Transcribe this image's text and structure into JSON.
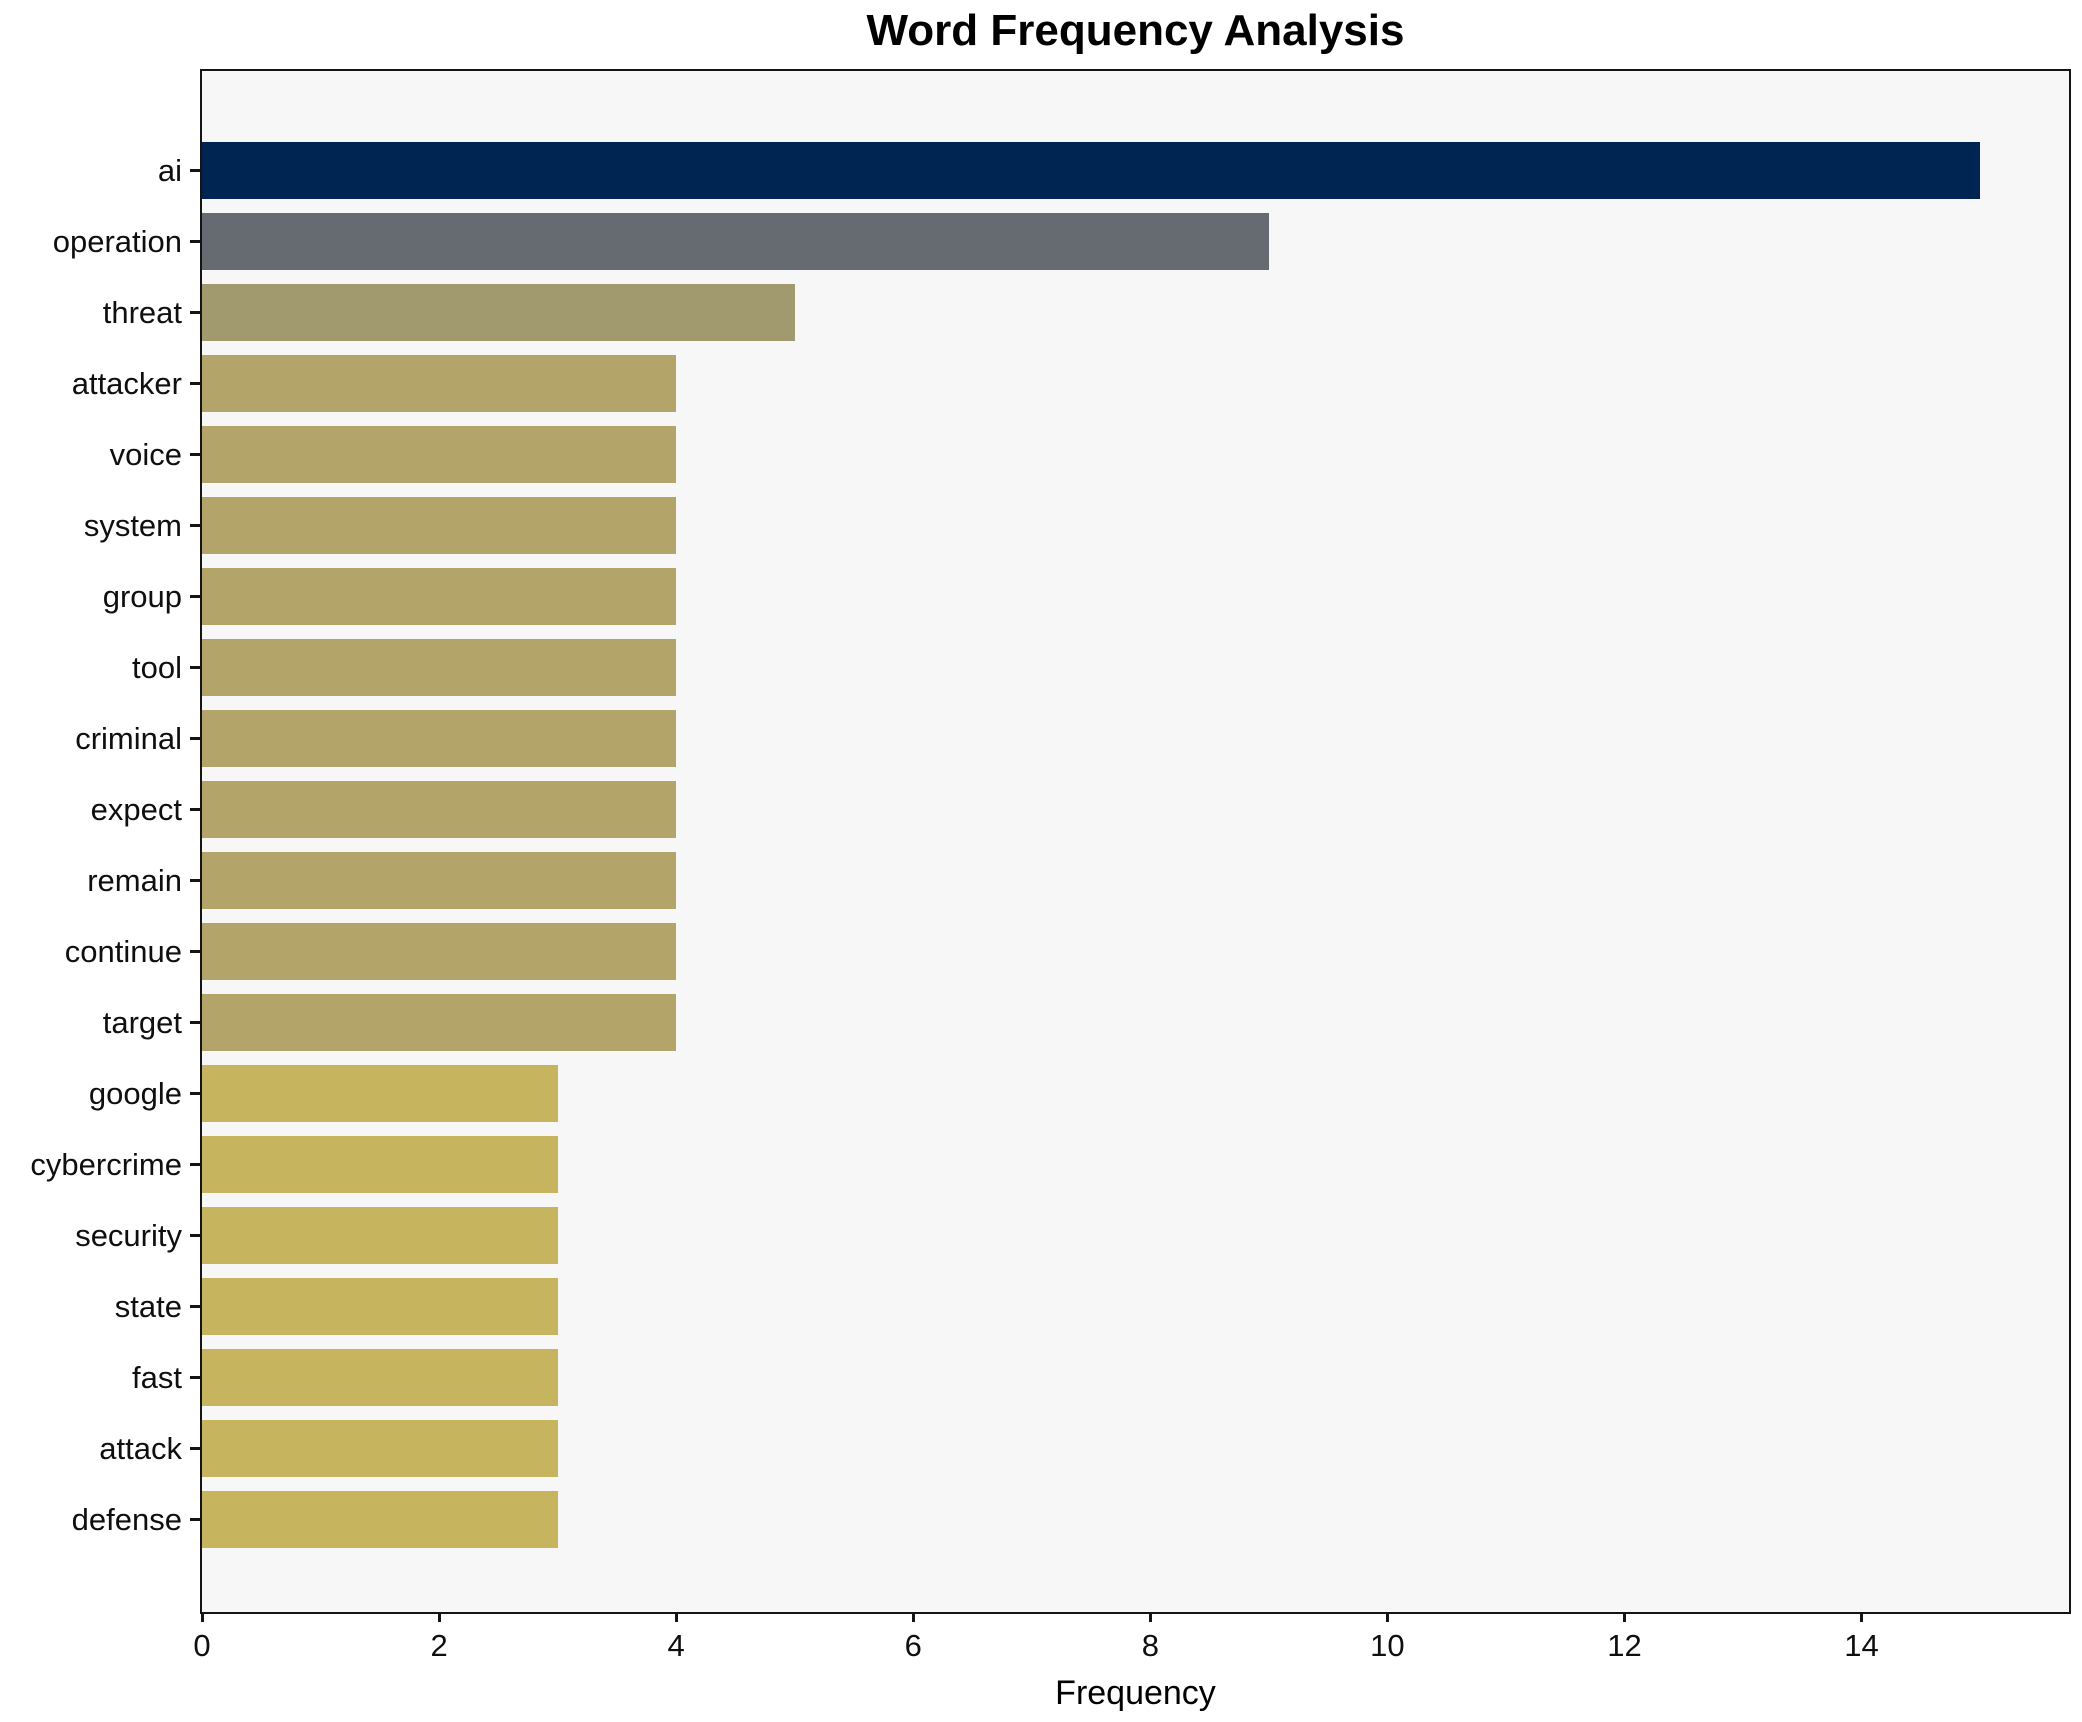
{
  "chart_data": {
    "type": "bar",
    "orientation": "horizontal",
    "title": "Word Frequency Analysis",
    "xlabel": "Frequency",
    "ylabel": "",
    "categories": [
      "ai",
      "operation",
      "threat",
      "attacker",
      "voice",
      "system",
      "group",
      "tool",
      "criminal",
      "expect",
      "remain",
      "continue",
      "target",
      "google",
      "cybercrime",
      "security",
      "state",
      "fast",
      "attack",
      "defense"
    ],
    "values": [
      15,
      9,
      5,
      4,
      4,
      4,
      4,
      4,
      4,
      4,
      4,
      4,
      4,
      3,
      3,
      3,
      3,
      3,
      3,
      3
    ],
    "bar_colors": [
      "#002552",
      "#666a71",
      "#a09a6e",
      "#b3a56a",
      "#b3a56a",
      "#b3a56a",
      "#b3a56a",
      "#b3a56a",
      "#b3a56a",
      "#b3a56a",
      "#b3a56a",
      "#b3a56a",
      "#b3a56a",
      "#c7b45e",
      "#c7b45e",
      "#c7b45e",
      "#c7b45e",
      "#c7b45e",
      "#c7b45e",
      "#c7b45e"
    ],
    "xticks": [
      0,
      2,
      4,
      6,
      8,
      10,
      12,
      14
    ],
    "xlim": [
      0,
      15.75
    ],
    "grid": false,
    "legend": null,
    "plot_background": "#f7f7f7",
    "figure_background": "#ffffff",
    "spine_color": "#141414"
  }
}
